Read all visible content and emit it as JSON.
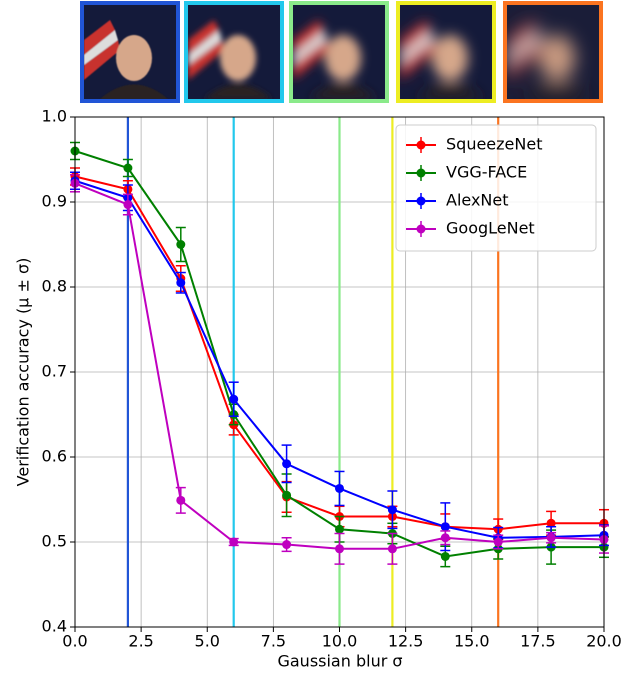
{
  "chart_data": {
    "type": "errorbar-line",
    "xlabel": "Gaussian blur σ",
    "ylabel": "Verification accuracy (μ ± σ)",
    "xlim": [
      0,
      20
    ],
    "ylim": [
      0.4,
      1.0
    ],
    "xticks": [
      {
        "value": 0,
        "label": "0.0"
      },
      2.5,
      {
        "value": 5,
        "label": "5.0"
      },
      7.5,
      {
        "value": 10,
        "label": "10.0"
      },
      12.5,
      {
        "value": 15,
        "label": "15.0"
      },
      17.5,
      {
        "value": 20,
        "label": "20.0"
      }
    ],
    "yticks": [
      0.4,
      0.5,
      0.6,
      0.7,
      0.8,
      0.9,
      {
        "value": 1,
        "label": "1.0"
      }
    ],
    "grid": true,
    "legend": "upper right",
    "x": [
      0,
      2,
      4,
      6,
      8,
      10,
      12,
      14,
      16,
      18,
      20
    ],
    "vlines": [
      {
        "x": 2,
        "color": "#2155d6"
      },
      {
        "x": 6,
        "color": "#22c8ec"
      },
      {
        "x": 10,
        "color": "#8aea8a"
      },
      {
        "x": 12,
        "color": "#eded22"
      },
      {
        "x": 16,
        "color": "#fb7420"
      }
    ],
    "series": [
      {
        "name": "SqueezeNet",
        "color": "#ff0000",
        "values": [
          0.93,
          0.915,
          0.81,
          0.638,
          0.553,
          0.53,
          0.53,
          0.518,
          0.515,
          0.522,
          0.522
        ],
        "errors": [
          0.01,
          0.01,
          0.015,
          0.012,
          0.018,
          0.012,
          0.012,
          0.015,
          0.012,
          0.014,
          0.016
        ]
      },
      {
        "name": "VGG-FACE",
        "color": "#008000",
        "values": [
          0.96,
          0.94,
          0.85,
          0.65,
          0.555,
          0.515,
          0.51,
          0.483,
          0.492,
          0.494,
          0.494
        ],
        "errors": [
          0.01,
          0.01,
          0.02,
          0.012,
          0.025,
          0.015,
          0.012,
          0.012,
          0.012,
          0.02,
          0.012
        ]
      },
      {
        "name": "AlexNet",
        "color": "#0000ff",
        "values": [
          0.925,
          0.905,
          0.805,
          0.668,
          0.592,
          0.563,
          0.538,
          0.518,
          0.505,
          0.506,
          0.508
        ],
        "errors": [
          0.01,
          0.015,
          0.012,
          0.02,
          0.022,
          0.02,
          0.022,
          0.028,
          0.012,
          0.012,
          0.012
        ]
      },
      {
        "name": "GoogLeNet",
        "color": "#bf00bf",
        "values": [
          0.922,
          0.897,
          0.549,
          0.5,
          0.497,
          0.492,
          0.492,
          0.505,
          0.5,
          0.505,
          0.503
        ],
        "errors": [
          0.01,
          0.012,
          0.015,
          0.004,
          0.008,
          0.018,
          0.018,
          0.008,
          0.008,
          0.006,
          0.016
        ]
      }
    ]
  }
}
